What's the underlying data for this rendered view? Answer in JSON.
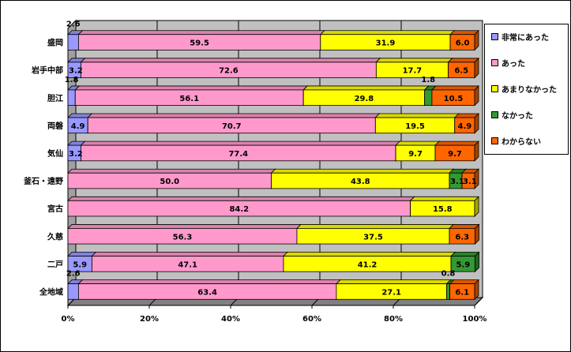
{
  "chart_data": {
    "type": "bar",
    "orientation": "horizontal",
    "stacked": "percent",
    "categories": [
      "盛岡",
      "岩手中部",
      "胆江",
      "両磐",
      "気仙",
      "釜石・遠野",
      "宮古",
      "久慈",
      "二戸",
      "全地域"
    ],
    "series": [
      {
        "name": "非常にあった",
        "color": "#9999ff",
        "values": [
          2.6,
          3.2,
          1.8,
          4.9,
          3.2,
          0,
          0,
          0,
          5.9,
          2.6
        ]
      },
      {
        "name": "あった",
        "color": "#ff99cc",
        "values": [
          59.5,
          72.6,
          56.1,
          70.7,
          77.4,
          50.0,
          84.2,
          56.3,
          47.1,
          63.4
        ]
      },
      {
        "name": "あまりなかった",
        "color": "#ffff00",
        "values": [
          31.9,
          17.7,
          29.8,
          19.5,
          9.7,
          43.8,
          15.8,
          37.5,
          41.2,
          27.1
        ]
      },
      {
        "name": "なかった",
        "color": "#339933",
        "values": [
          0,
          0,
          1.8,
          0,
          0,
          3.1,
          0,
          0,
          5.9,
          0.8
        ]
      },
      {
        "name": "わからない",
        "color": "#ff6600",
        "values": [
          6.0,
          6.5,
          10.5,
          4.9,
          9.7,
          3.1,
          0,
          6.3,
          0,
          6.1
        ]
      }
    ],
    "labels": [
      [
        "2.6",
        "59.5",
        "31.9",
        "",
        "6.0"
      ],
      [
        "3.2",
        "72.6",
        "17.7",
        "",
        "6.5"
      ],
      [
        "1.8",
        "56.1",
        "29.8",
        "1.8",
        "10.5"
      ],
      [
        "4.9",
        "70.7",
        "19.5",
        "",
        "4.9"
      ],
      [
        "3.2",
        "77.4",
        "9.7",
        "",
        "9.7"
      ],
      [
        "",
        "50.0",
        "43.8",
        "3.1",
        "3.1"
      ],
      [
        "",
        "84.2",
        "15.8",
        "",
        ""
      ],
      [
        "",
        "56.3",
        "37.5",
        "",
        "6.3"
      ],
      [
        "5.9",
        "47.1",
        "41.2",
        "5.9",
        ""
      ],
      [
        "2.6",
        "63.4",
        "27.1",
        "0.8",
        "6.1"
      ]
    ],
    "xticks": [
      "0%",
      "20%",
      "40%",
      "60%",
      "80%",
      "100%"
    ],
    "xlim": [
      0,
      100
    ],
    "grid": true,
    "legend": "right",
    "plot_bg": "#c0c0c0",
    "xlabel": "",
    "ylabel": "",
    "title": ""
  }
}
